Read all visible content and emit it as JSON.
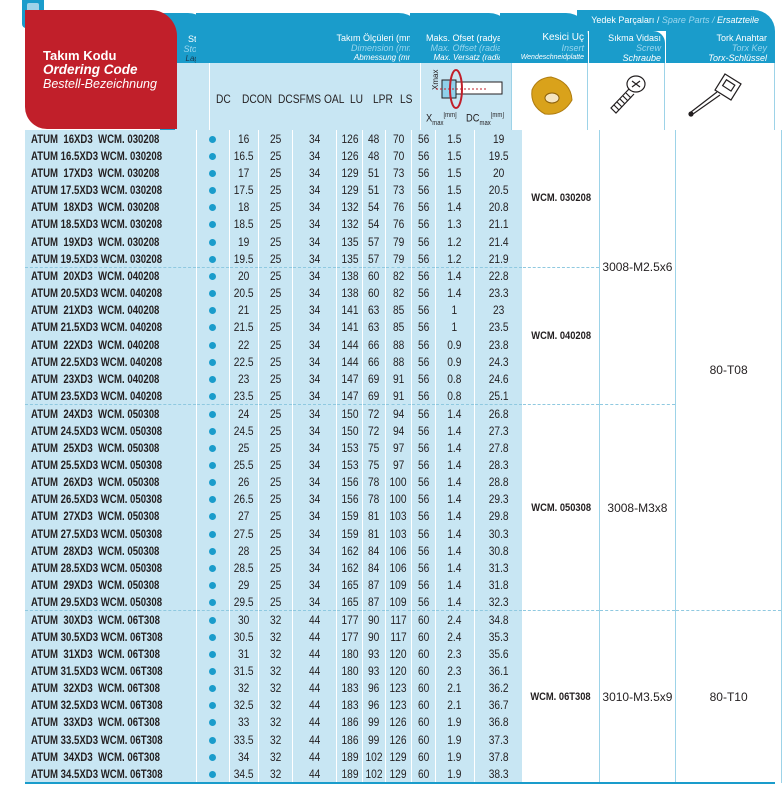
{
  "header": {
    "ordering": {
      "tr": "Takım Kodu",
      "en": "Ordering Code",
      "de": "Bestell-Bezeichnung"
    },
    "stock": {
      "tr": "Stok",
      "en": "Stock",
      "de": "Lager"
    },
    "dimension": {
      "tr": "Takım Ölçüleri (mm)",
      "en": "Dimension (mm)",
      "de": "Abmessung (mm)"
    },
    "offset": {
      "tr": "Maks. Ofset (radyal)",
      "en": "Max. Offset (radial)",
      "de": "Max. Versatz (radial)"
    },
    "insert": {
      "tr": "Kesici Uç",
      "en": "Insert",
      "de": "Wendeschneidplatte"
    },
    "spare": {
      "tr": "Yedek Parçaları /",
      "en": "Spare Parts /",
      "de": "Ersatzteile"
    },
    "screw": {
      "tr": "Sıkma Vidası",
      "en": "Screw",
      "de": "Schraube"
    },
    "key": {
      "tr": "Tork Anahtar",
      "en": "Torx Key",
      "de": "Torx-Schlüssel"
    },
    "columns": [
      "DC",
      "DCON",
      "DCSFMS",
      "OAL",
      "LU",
      "LPR",
      "LS"
    ],
    "xmax_label": "X",
    "xmax_sub": "max",
    "xmax_unit": "[mm]",
    "dcmax_label": "DC",
    "dcmax_sub": "max",
    "dcmax_unit": "[mm]",
    "diagram_xmax": "Xmax"
  },
  "colors": {
    "header_blue": "#1a9ccb",
    "cell_blue": "#c8e6f3",
    "red": "#c11f2a",
    "insert_gold": "#d9a21b"
  },
  "rows": [
    [
      "ATUM  16XD3  WCM. 030208",
      "16",
      "25",
      "34",
      "126",
      "48",
      "70",
      "56",
      "1.5",
      "19"
    ],
    [
      "ATUM 16.5XD3 WCM. 030208",
      "16.5",
      "25",
      "34",
      "126",
      "48",
      "70",
      "56",
      "1.5",
      "19.5"
    ],
    [
      "ATUM  17XD3  WCM. 030208",
      "17",
      "25",
      "34",
      "129",
      "51",
      "73",
      "56",
      "1.5",
      "20"
    ],
    [
      "ATUM 17.5XD3 WCM. 030208",
      "17.5",
      "25",
      "34",
      "129",
      "51",
      "73",
      "56",
      "1.5",
      "20.5"
    ],
    [
      "ATUM  18XD3  WCM. 030208",
      "18",
      "25",
      "34",
      "132",
      "54",
      "76",
      "56",
      "1.4",
      "20.8"
    ],
    [
      "ATUM 18.5XD3 WCM. 030208",
      "18.5",
      "25",
      "34",
      "132",
      "54",
      "76",
      "56",
      "1.3",
      "21.1"
    ],
    [
      "ATUM  19XD3  WCM. 030208",
      "19",
      "25",
      "34",
      "135",
      "57",
      "79",
      "56",
      "1.2",
      "21.4"
    ],
    [
      "ATUM 19.5XD3 WCM. 030208",
      "19.5",
      "25",
      "34",
      "135",
      "57",
      "79",
      "56",
      "1.2",
      "21.9"
    ],
    [
      "ATUM  20XD3  WCM. 040208",
      "20",
      "25",
      "34",
      "138",
      "60",
      "82",
      "56",
      "1.4",
      "22.8"
    ],
    [
      "ATUM 20.5XD3 WCM. 040208",
      "20.5",
      "25",
      "34",
      "138",
      "60",
      "82",
      "56",
      "1.4",
      "23.3"
    ],
    [
      "ATUM  21XD3  WCM. 040208",
      "21",
      "25",
      "34",
      "141",
      "63",
      "85",
      "56",
      "1",
      "23"
    ],
    [
      "ATUM 21.5XD3 WCM. 040208",
      "21.5",
      "25",
      "34",
      "141",
      "63",
      "85",
      "56",
      "1",
      "23.5"
    ],
    [
      "ATUM  22XD3  WCM. 040208",
      "22",
      "25",
      "34",
      "144",
      "66",
      "88",
      "56",
      "0.9",
      "23.8"
    ],
    [
      "ATUM 22.5XD3 WCM. 040208",
      "22.5",
      "25",
      "34",
      "144",
      "66",
      "88",
      "56",
      "0.9",
      "24.3"
    ],
    [
      "ATUM  23XD3  WCM. 040208",
      "23",
      "25",
      "34",
      "147",
      "69",
      "91",
      "56",
      "0.8",
      "24.6"
    ],
    [
      "ATUM 23.5XD3 WCM. 040208",
      "23.5",
      "25",
      "34",
      "147",
      "69",
      "91",
      "56",
      "0.8",
      "25.1"
    ],
    [
      "ATUM  24XD3  WCM. 050308",
      "24",
      "25",
      "34",
      "150",
      "72",
      "94",
      "56",
      "1.4",
      "26.8"
    ],
    [
      "ATUM 24.5XD3 WCM. 050308",
      "24.5",
      "25",
      "34",
      "150",
      "72",
      "94",
      "56",
      "1.4",
      "27.3"
    ],
    [
      "ATUM  25XD3  WCM. 050308",
      "25",
      "25",
      "34",
      "153",
      "75",
      "97",
      "56",
      "1.4",
      "27.8"
    ],
    [
      "ATUM 25.5XD3 WCM. 050308",
      "25.5",
      "25",
      "34",
      "153",
      "75",
      "97",
      "56",
      "1.4",
      "28.3"
    ],
    [
      "ATUM  26XD3  WCM. 050308",
      "26",
      "25",
      "34",
      "156",
      "78",
      "100",
      "56",
      "1.4",
      "28.8"
    ],
    [
      "ATUM 26.5XD3 WCM. 050308",
      "26.5",
      "25",
      "34",
      "156",
      "78",
      "100",
      "56",
      "1.4",
      "29.3"
    ],
    [
      "ATUM  27XD3  WCM. 050308",
      "27",
      "25",
      "34",
      "159",
      "81",
      "103",
      "56",
      "1.4",
      "29.8"
    ],
    [
      "ATUM 27.5XD3 WCM. 050308",
      "27.5",
      "25",
      "34",
      "159",
      "81",
      "103",
      "56",
      "1.4",
      "30.3"
    ],
    [
      "ATUM  28XD3  WCM. 050308",
      "28",
      "25",
      "34",
      "162",
      "84",
      "106",
      "56",
      "1.4",
      "30.8"
    ],
    [
      "ATUM 28.5XD3 WCM. 050308",
      "28.5",
      "25",
      "34",
      "162",
      "84",
      "106",
      "56",
      "1.4",
      "31.3"
    ],
    [
      "ATUM  29XD3  WCM. 050308",
      "29",
      "25",
      "34",
      "165",
      "87",
      "109",
      "56",
      "1.4",
      "31.8"
    ],
    [
      "ATUM 29.5XD3 WCM. 050308",
      "29.5",
      "25",
      "34",
      "165",
      "87",
      "109",
      "56",
      "1.4",
      "32.3"
    ],
    [
      "ATUM  30XD3  WCM. 06T308",
      "30",
      "32",
      "44",
      "177",
      "90",
      "117",
      "60",
      "2.4",
      "34.8"
    ],
    [
      "ATUM 30.5XD3 WCM. 06T308",
      "30.5",
      "32",
      "44",
      "177",
      "90",
      "117",
      "60",
      "2.4",
      "35.3"
    ],
    [
      "ATUM  31XD3  WCM. 06T308",
      "31",
      "32",
      "44",
      "180",
      "93",
      "120",
      "60",
      "2.3",
      "35.6"
    ],
    [
      "ATUM 31.5XD3 WCM. 06T308",
      "31.5",
      "32",
      "44",
      "180",
      "93",
      "120",
      "60",
      "2.3",
      "36.1"
    ],
    [
      "ATUM  32XD3  WCM. 06T308",
      "32",
      "32",
      "44",
      "183",
      "96",
      "123",
      "60",
      "2.1",
      "36.2"
    ],
    [
      "ATUM 32.5XD3 WCM. 06T308",
      "32.5",
      "32",
      "44",
      "183",
      "96",
      "123",
      "60",
      "2.1",
      "36.7"
    ],
    [
      "ATUM  33XD3  WCM. 06T308",
      "33",
      "32",
      "44",
      "186",
      "99",
      "126",
      "60",
      "1.9",
      "36.8"
    ],
    [
      "ATUM 33.5XD3 WCM. 06T308",
      "33.5",
      "32",
      "44",
      "186",
      "99",
      "126",
      "60",
      "1.9",
      "37.3"
    ],
    [
      "ATUM  34XD3  WCM. 06T308",
      "34",
      "32",
      "44",
      "189",
      "102",
      "129",
      "60",
      "1.9",
      "37.8"
    ],
    [
      "ATUM 34.5XD3 WCM. 06T308",
      "34.5",
      "32",
      "44",
      "189",
      "102",
      "129",
      "60",
      "1.9",
      "38.3"
    ]
  ],
  "stock_available": true,
  "inserts": [
    {
      "label": "WCM. 030208",
      "rows": 8
    },
    {
      "label": "WCM. 040208",
      "rows": 8
    },
    {
      "label": "WCM. 050308",
      "rows": 12
    },
    {
      "label": "WCM. 06T308",
      "rows": 10
    }
  ],
  "screws": [
    {
      "label": "3008-M2.5x6",
      "rows": 16
    },
    {
      "label": "3008-M3x8",
      "rows": 12
    },
    {
      "label": "3010-M3.5x9",
      "rows": 10
    }
  ],
  "keys": [
    {
      "label": "80-T08",
      "rows": 28
    },
    {
      "label": "80-T10",
      "rows": 10
    }
  ]
}
